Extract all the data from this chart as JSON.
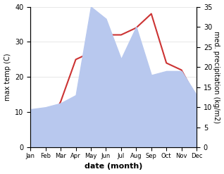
{
  "months": [
    "Jan",
    "Feb",
    "Mar",
    "Apr",
    "May",
    "Jun",
    "Jul",
    "Aug",
    "Sep",
    "Oct",
    "Nov",
    "Dec"
  ],
  "temperature": [
    3,
    5,
    13,
    25,
    27,
    32,
    32,
    34,
    38,
    24,
    22,
    14
  ],
  "precipitation": [
    9.5,
    10,
    11,
    13,
    35,
    32,
    22,
    30,
    18,
    19,
    19,
    13
  ],
  "temp_ylim": [
    0,
    40
  ],
  "precip_ylim": [
    0,
    35
  ],
  "temp_color": "#cc3333",
  "precip_color": "#b8c8ee",
  "xlabel": "date (month)",
  "ylabel_left": "max temp (C)",
  "ylabel_right": "med. precipitation (kg/m2)",
  "temp_yticks": [
    0,
    10,
    20,
    30,
    40
  ],
  "precip_yticks": [
    0,
    5,
    10,
    15,
    20,
    25,
    30,
    35
  ]
}
